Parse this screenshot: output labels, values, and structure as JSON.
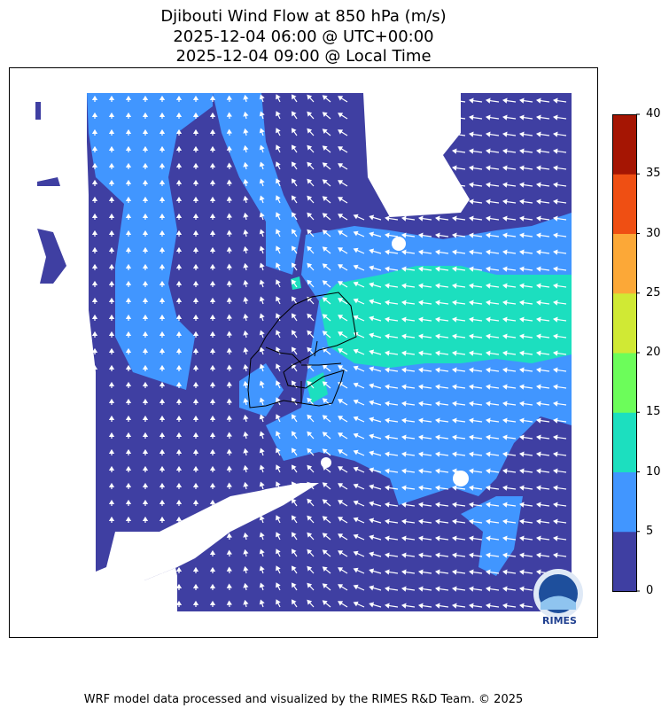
{
  "title": {
    "line1": "Djibouti Wind Flow at 850 hPa (m/s)",
    "line2": "2025-12-04 06:00 @ UTC+00:00",
    "line3": "2025-12-04 09:00 @ Local Time"
  },
  "chart_data": {
    "type": "heatmap",
    "variable": "Wind speed with direction vectors",
    "units": "m/s",
    "colorbar": {
      "levels": [
        0,
        5,
        10,
        15,
        20,
        25,
        30,
        35,
        40
      ],
      "tick_labels": [
        "0",
        "5",
        "10",
        "15",
        "20",
        "25",
        "30",
        "35",
        "40"
      ],
      "colors": [
        "#3f3fa2",
        "#4196ff",
        "#1cdfbf",
        "#6cfd5a",
        "#d0e934",
        "#fca837",
        "#ef4f13",
        "#a51503"
      ]
    },
    "observed_ranges": "Mostly 0-5 and 5-10 m/s; 10-15 m/s band over the Gulf of Tadjoura / Gulf of Aden east of Djibouti",
    "wind_direction": "Northward flow over western highlands, westward (easterly) flow over the Gulf of Aden"
  },
  "logo": {
    "text": "RIMES"
  },
  "footer": "WRF model data processed and visualized by the RIMES R&D Team. © 2025"
}
